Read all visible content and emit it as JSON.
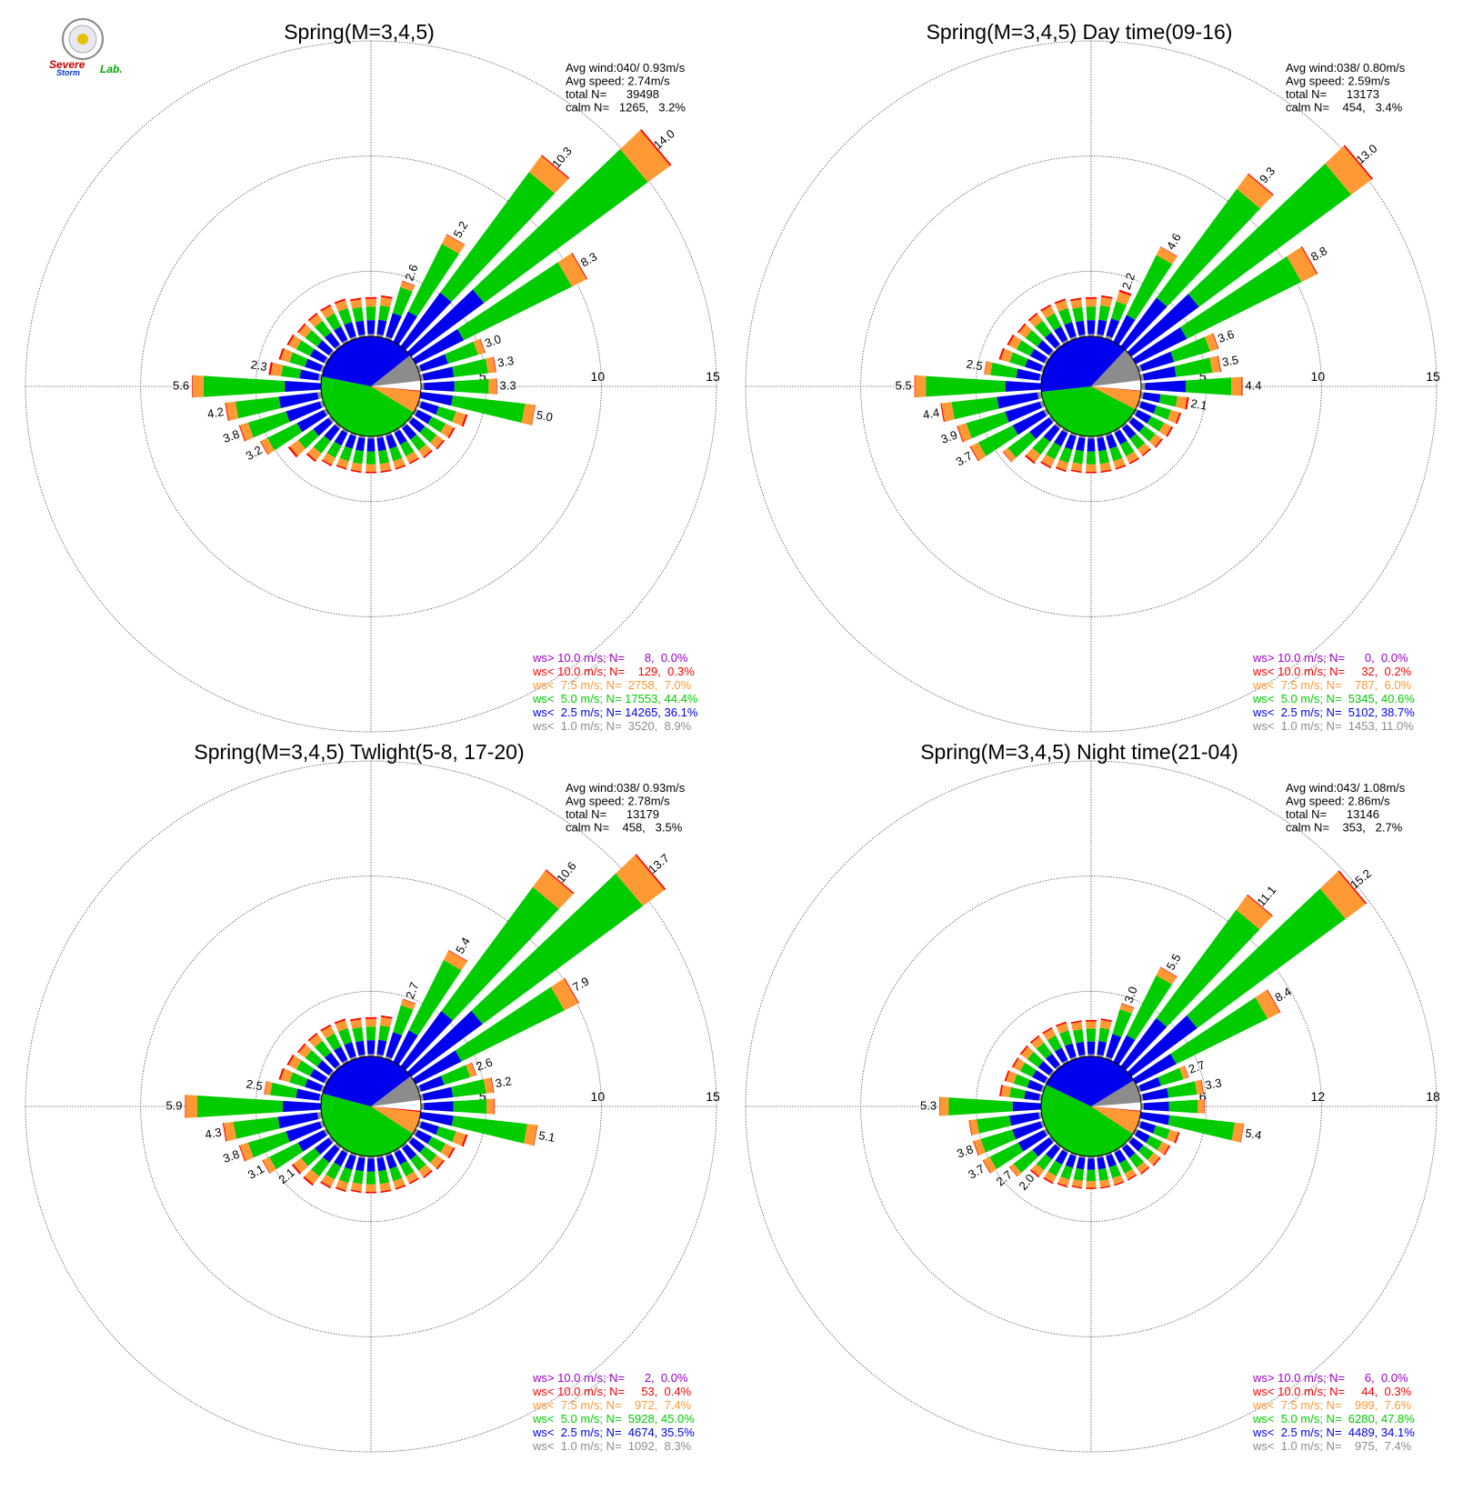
{
  "logo": {
    "text_line1": "Severe",
    "text_line2": "Storm",
    "text_suffix": "Lab."
  },
  "colors": {
    "calm": "#ffffff",
    "lt1": "#8c8c8c",
    "lt2_5": "#0000ee",
    "lt5": "#00cc00",
    "lt7_5": "#ff9933",
    "lt10": "#ff0000",
    "gt10": "#9900cc",
    "ring": "#555555"
  },
  "chart_data": [
    {
      "type": "windrose",
      "title": "Spring(M=3,4,5)",
      "stats": [
        "Avg wind:040/ 0.93m/s",
        "Avg speed: 2.74m/s",
        "total N=      39498",
        "calm N=   1265,   3.2%"
      ],
      "rings": [
        5,
        10,
        15
      ],
      "ring_labels": [
        "5",
        "10",
        "15"
      ],
      "legend": [
        {
          "text": "ws> 10.0 m/s; N=      8,  0.0%",
          "color": "#9900cc"
        },
        {
          "text": "ws< 10.0 m/s; N=    129,  0.3%",
          "color": "#ff0000"
        },
        {
          "text": "ws<  7.5 m/s; N=  2758,  7.0%",
          "color": "#ff9933"
        },
        {
          "text": "ws<  5.0 m/s; N= 17553, 44.4%",
          "color": "#00cc00"
        },
        {
          "text": "ws<  2.5 m/s; N= 14265, 36.1%",
          "color": "#0000ee"
        },
        {
          "text": "ws<  1.0 m/s; N=  3520,  8.9%",
          "color": "#8c8c8c"
        }
      ],
      "pie": [
        3.2,
        8.9,
        36.1,
        44.4,
        7.0,
        0.3,
        0.0
      ],
      "directions": [
        0,
        10,
        20,
        30,
        40,
        50,
        60,
        70,
        80,
        90,
        100,
        110,
        120,
        130,
        140,
        150,
        160,
        170,
        180,
        190,
        200,
        210,
        220,
        230,
        240,
        250,
        260,
        270,
        280,
        290,
        300,
        310,
        320,
        330,
        340,
        350
      ],
      "totals": [
        1.7,
        1.8,
        2.6,
        5.2,
        10.3,
        14.0,
        8.3,
        3.0,
        3.3,
        3.3,
        5.0,
        2.2,
        1.9,
        1.8,
        1.7,
        1.6,
        1.6,
        1.6,
        1.6,
        1.6,
        1.6,
        1.7,
        1.9,
        2.3,
        3.2,
        3.8,
        4.2,
        5.6,
        2.3,
        2.0,
        1.9,
        1.8,
        1.8,
        1.8,
        1.8,
        1.7
      ],
      "labeled": {
        "20": "2.6",
        "30": "5.2",
        "40": "10.3",
        "50": "14.0",
        "60": "8.3",
        "70": "3.0",
        "80": "3.3",
        "90": "3.3",
        "100": "5.0",
        "240": "3.2",
        "250": "3.8",
        "260": "4.2",
        "270": "5.6",
        "280": "2.3"
      }
    },
    {
      "type": "windrose",
      "title": "Spring(M=3,4,5) Day time(09-16)",
      "stats": [
        "Avg wind:038/ 0.80m/s",
        "Avg speed: 2.59m/s",
        "total N=      13173",
        "calm N=    454,   3.4%"
      ],
      "rings": [
        5,
        10,
        15
      ],
      "ring_labels": [
        "5",
        "10",
        "15"
      ],
      "legend": [
        {
          "text": "ws> 10.0 m/s; N=      0,  0.0%",
          "color": "#9900cc"
        },
        {
          "text": "ws< 10.0 m/s; N=     32,  0.2%",
          "color": "#ff0000"
        },
        {
          "text": "ws<  7.5 m/s; N=    787,  6.0%",
          "color": "#ff9933"
        },
        {
          "text": "ws<  5.0 m/s; N=  5345, 40.6%",
          "color": "#00cc00"
        },
        {
          "text": "ws<  2.5 m/s; N=  5102, 38.7%",
          "color": "#0000ee"
        },
        {
          "text": "ws<  1.0 m/s; N=  1453, 11.0%",
          "color": "#8c8c8c"
        }
      ],
      "pie": [
        3.4,
        11.0,
        38.7,
        40.6,
        6.0,
        0.2,
        0.0
      ],
      "directions": [
        0,
        10,
        20,
        30,
        40,
        50,
        60,
        70,
        80,
        90,
        100,
        110,
        120,
        130,
        140,
        150,
        160,
        170,
        180,
        190,
        200,
        210,
        220,
        230,
        240,
        250,
        260,
        270,
        280,
        290,
        300,
        310,
        320,
        330,
        340,
        350
      ],
      "totals": [
        1.7,
        1.8,
        2.2,
        4.6,
        9.3,
        13.0,
        8.8,
        3.6,
        3.5,
        4.4,
        2.1,
        1.9,
        1.8,
        1.7,
        1.6,
        1.6,
        1.6,
        1.6,
        1.6,
        1.6,
        1.7,
        1.8,
        2.0,
        2.6,
        3.7,
        3.9,
        4.4,
        5.5,
        2.5,
        2.0,
        1.9,
        1.8,
        1.8,
        1.8,
        1.8,
        1.7
      ],
      "labeled": {
        "20": "2.2",
        "30": "4.6",
        "40": "9.3",
        "50": "13.0",
        "60": "8.8",
        "70": "3.6",
        "80": "3.5",
        "90": "4.4",
        "100": "2.1",
        "240": "3.7",
        "250": "3.9",
        "260": "4.4",
        "270": "5.5",
        "280": "2.5"
      }
    },
    {
      "type": "windrose",
      "title": "Spring(M=3,4,5) Twlight(5-8, 17-20)",
      "stats": [
        "Avg wind:038/ 0.93m/s",
        "Avg speed: 2.78m/s",
        "total N=      13179",
        "calm N=    458,   3.5%"
      ],
      "rings": [
        5,
        10,
        15
      ],
      "ring_labels": [
        "5",
        "10",
        "15"
      ],
      "legend": [
        {
          "text": "ws> 10.0 m/s; N=      2,  0.0%",
          "color": "#9900cc"
        },
        {
          "text": "ws< 10.0 m/s; N=     53,  0.4%",
          "color": "#ff0000"
        },
        {
          "text": "ws<  7.5 m/s; N=    972,  7.4%",
          "color": "#ff9933"
        },
        {
          "text": "ws<  5.0 m/s; N=  5928, 45.0%",
          "color": "#00cc00"
        },
        {
          "text": "ws<  2.5 m/s; N=  4674, 35.5%",
          "color": "#0000ee"
        },
        {
          "text": "ws<  1.0 m/s; N=  1092,  8.3%",
          "color": "#8c8c8c"
        }
      ],
      "pie": [
        3.5,
        8.3,
        35.5,
        45.0,
        7.4,
        0.4,
        0.0
      ],
      "directions": [
        0,
        10,
        20,
        30,
        40,
        50,
        60,
        70,
        80,
        90,
        100,
        110,
        120,
        130,
        140,
        150,
        160,
        170,
        180,
        190,
        200,
        210,
        220,
        230,
        240,
        250,
        260,
        270,
        280,
        290,
        300,
        310,
        320,
        330,
        340,
        350
      ],
      "totals": [
        1.7,
        1.8,
        2.7,
        5.4,
        10.6,
        13.7,
        7.9,
        2.6,
        3.2,
        3.2,
        5.1,
        2.2,
        1.9,
        1.8,
        1.7,
        1.6,
        1.6,
        1.6,
        1.6,
        1.6,
        1.7,
        1.8,
        2.1,
        2.1,
        3.1,
        3.8,
        4.3,
        5.9,
        2.5,
        2.0,
        1.9,
        1.8,
        1.8,
        1.8,
        1.8,
        1.7
      ],
      "labeled": {
        "20": "2.7",
        "30": "5.4",
        "40": "10.6",
        "50": "13.7",
        "60": "7.9",
        "70": "2.6",
        "80": "3.2",
        "100": "5.1",
        "230": "2.1",
        "240": "3.1",
        "250": "3.8",
        "260": "4.3",
        "270": "5.9",
        "280": "2.5"
      }
    },
    {
      "type": "windrose",
      "title": "Spring(M=3,4,5) Night time(21-04)",
      "stats": [
        "Avg wind:043/ 1.08m/s",
        "Avg speed: 2.86m/s",
        "total N=      13146",
        "calm N=    353,   2.7%"
      ],
      "rings": [
        6,
        12,
        18
      ],
      "ring_labels": [
        "6",
        "12",
        "18"
      ],
      "legend": [
        {
          "text": "ws> 10.0 m/s; N=      6,  0.0%",
          "color": "#9900cc"
        },
        {
          "text": "ws< 10.0 m/s; N=     44,  0.3%",
          "color": "#ff0000"
        },
        {
          "text": "ws<  7.5 m/s; N=    999,  7.6%",
          "color": "#ff9933"
        },
        {
          "text": "ws<  5.0 m/s; N=  6280, 47.8%",
          "color": "#00cc00"
        },
        {
          "text": "ws<  2.5 m/s; N=  4489, 34.1%",
          "color": "#0000ee"
        },
        {
          "text": "ws<  1.0 m/s; N=    975,  7.4%",
          "color": "#8c8c8c"
        }
      ],
      "pie": [
        2.7,
        7.4,
        34.1,
        47.8,
        7.6,
        0.3,
        0.0
      ],
      "directions": [
        0,
        10,
        20,
        30,
        40,
        50,
        60,
        70,
        80,
        90,
        100,
        110,
        120,
        130,
        140,
        150,
        160,
        170,
        180,
        190,
        200,
        210,
        220,
        230,
        240,
        250,
        260,
        270,
        280,
        290,
        300,
        310,
        320,
        330,
        340,
        350
      ],
      "totals": [
        1.9,
        2.0,
        3.0,
        5.5,
        11.1,
        15.2,
        8.4,
        2.7,
        3.3,
        3.3,
        5.4,
        2.2,
        2.0,
        1.9,
        1.8,
        1.7,
        1.7,
        1.7,
        1.7,
        1.7,
        1.8,
        1.9,
        2.0,
        2.7,
        3.7,
        3.8,
        3.8,
        5.3,
        2.2,
        2.1,
        2.0,
        2.0,
        2.0,
        2.0,
        2.0,
        1.9
      ],
      "labeled": {
        "20": "3.0",
        "30": "5.5",
        "40": "11.1",
        "50": "15.2",
        "60": "8.4",
        "70": "2.7",
        "80": "3.3",
        "100": "5.4",
        "220": "2.0",
        "230": "2.7",
        "240": "3.7",
        "250": "3.8",
        "270": "5.3"
      }
    }
  ]
}
